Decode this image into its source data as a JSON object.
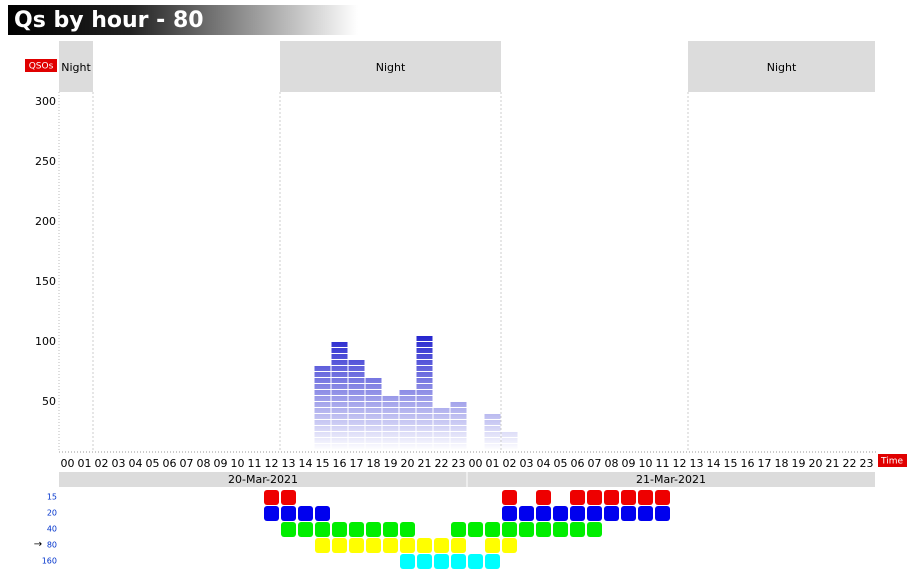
{
  "chart_data": {
    "type": "bar",
    "title": "Qs by hour - 80",
    "y_label": "QSOs",
    "x_label": "Time",
    "categories": [
      "00",
      "01",
      "02",
      "03",
      "04",
      "05",
      "06",
      "07",
      "08",
      "09",
      "10",
      "11",
      "12",
      "13",
      "14",
      "15",
      "16",
      "17",
      "18",
      "19",
      "20",
      "21",
      "22",
      "23",
      "00",
      "01",
      "02",
      "03",
      "04",
      "05",
      "06",
      "07",
      "08",
      "09",
      "10",
      "11",
      "12",
      "13",
      "14",
      "15",
      "16",
      "17",
      "18",
      "19",
      "20",
      "21",
      "22",
      "23"
    ],
    "values": [
      null,
      null,
      null,
      null,
      null,
      null,
      null,
      null,
      null,
      null,
      null,
      null,
      null,
      null,
      null,
      80,
      100,
      85,
      70,
      55,
      60,
      105,
      45,
      50,
      null,
      40,
      25,
      null,
      null,
      null,
      null,
      null,
      null,
      null,
      null,
      null,
      null,
      null,
      null,
      null,
      null,
      null,
      null,
      null,
      null,
      null,
      null,
      null
    ],
    "color": "#1a1acc",
    "ylim": [
      10,
      310
    ],
    "yticks": [
      50,
      100,
      150,
      200,
      250,
      300
    ],
    "days": [
      {
        "label": "20-Mar-2021",
        "start": 0,
        "end": 24
      },
      {
        "label": "21-Mar-2021",
        "start": 24,
        "end": 48
      }
    ],
    "night_periods": [
      {
        "label": "Night",
        "start": 0,
        "end": 2
      },
      {
        "label": "Night",
        "start": 13,
        "end": 26
      },
      {
        "label": "Night",
        "start": 37,
        "end": 48
      }
    ],
    "bands": [
      {
        "name": "15",
        "color": "#ee0000",
        "hours": [
          12,
          13,
          26,
          28,
          30,
          31,
          32,
          33,
          34,
          35
        ]
      },
      {
        "name": "20",
        "color": "#0000ee",
        "hours": [
          12,
          13,
          14,
          15,
          26,
          27,
          28,
          29,
          30,
          31,
          32,
          33,
          34,
          35
        ]
      },
      {
        "name": "40",
        "color": "#00ee00",
        "hours": [
          13,
          14,
          15,
          16,
          17,
          18,
          19,
          20,
          23,
          24,
          25,
          26,
          27,
          28,
          29,
          30,
          31
        ]
      },
      {
        "name": "80",
        "marker": "→",
        "color": "#ffff00",
        "hours": [
          15,
          16,
          17,
          18,
          19,
          20,
          21,
          22,
          23,
          25,
          26
        ]
      },
      {
        "name": "160",
        "color": "#00ffff",
        "hours": [
          20,
          21,
          22,
          23,
          24,
          25
        ]
      }
    ]
  }
}
